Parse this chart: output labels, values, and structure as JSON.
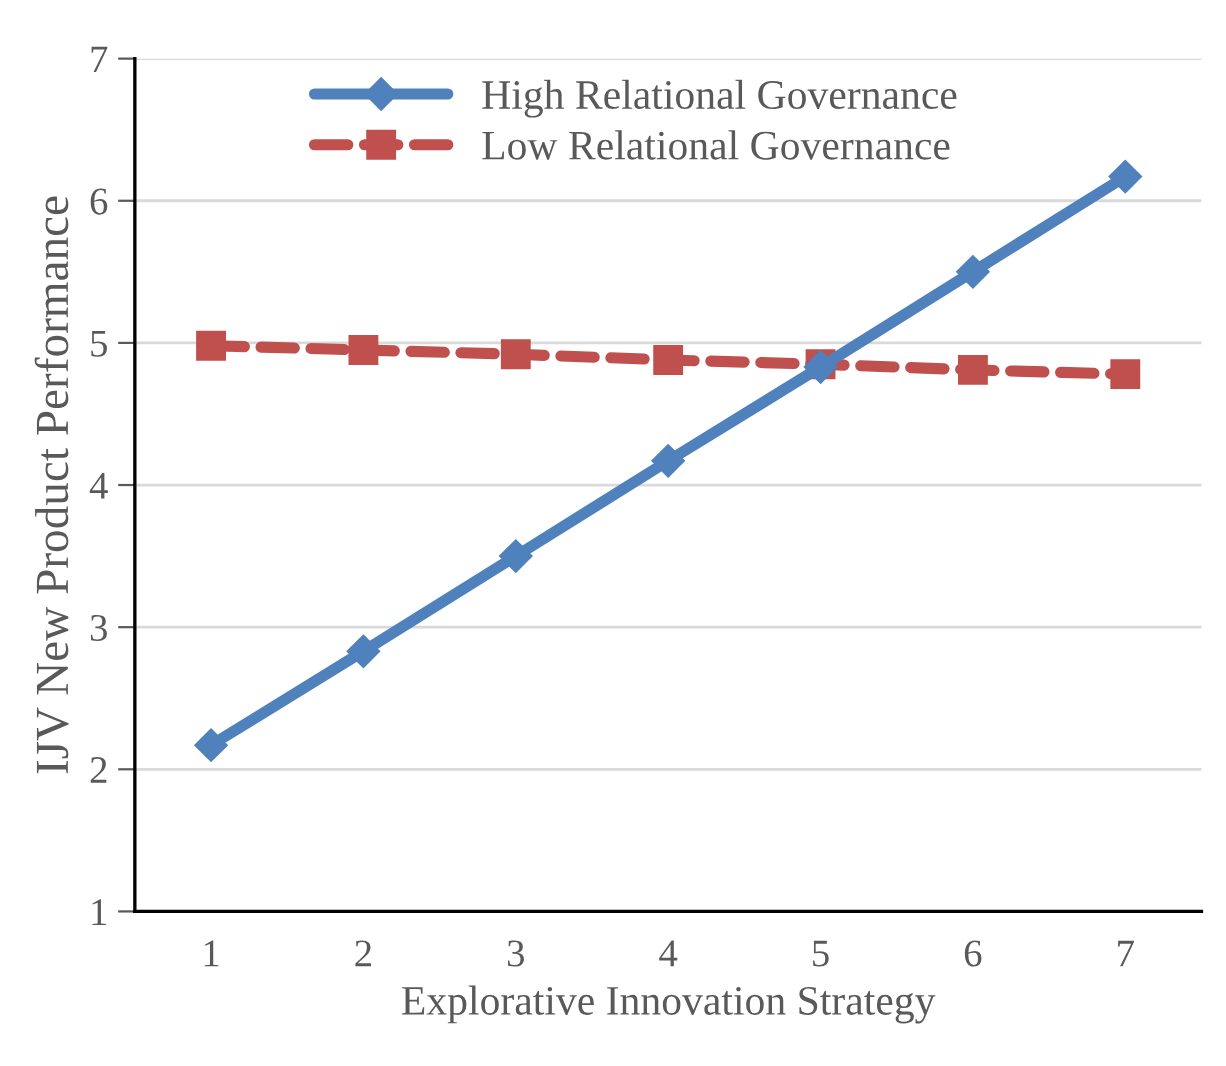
{
  "chart_data": {
    "type": "line",
    "xlabel": "Explorative Innovation Strategy",
    "ylabel": "IJV New Product Performance",
    "categories": [
      "1",
      "2",
      "3",
      "4",
      "5",
      "6",
      "7"
    ],
    "series": [
      {
        "name": "High Relational Governance",
        "color": "#4f81bd",
        "marker": "diamond",
        "line_style": "solid",
        "values": [
          2.17,
          2.83,
          3.5,
          4.17,
          4.83,
          5.5,
          6.17
        ]
      },
      {
        "name": "Low Relational Governance",
        "color": "#c0504d",
        "marker": "square",
        "line_style": "dashed",
        "values": [
          4.98,
          4.95,
          4.92,
          4.88,
          4.85,
          4.81,
          4.78
        ]
      }
    ],
    "ylim": [
      1,
      7
    ],
    "yticks": [
      1,
      2,
      3,
      4,
      5,
      6,
      7
    ],
    "grid": "y",
    "legend": "top"
  }
}
